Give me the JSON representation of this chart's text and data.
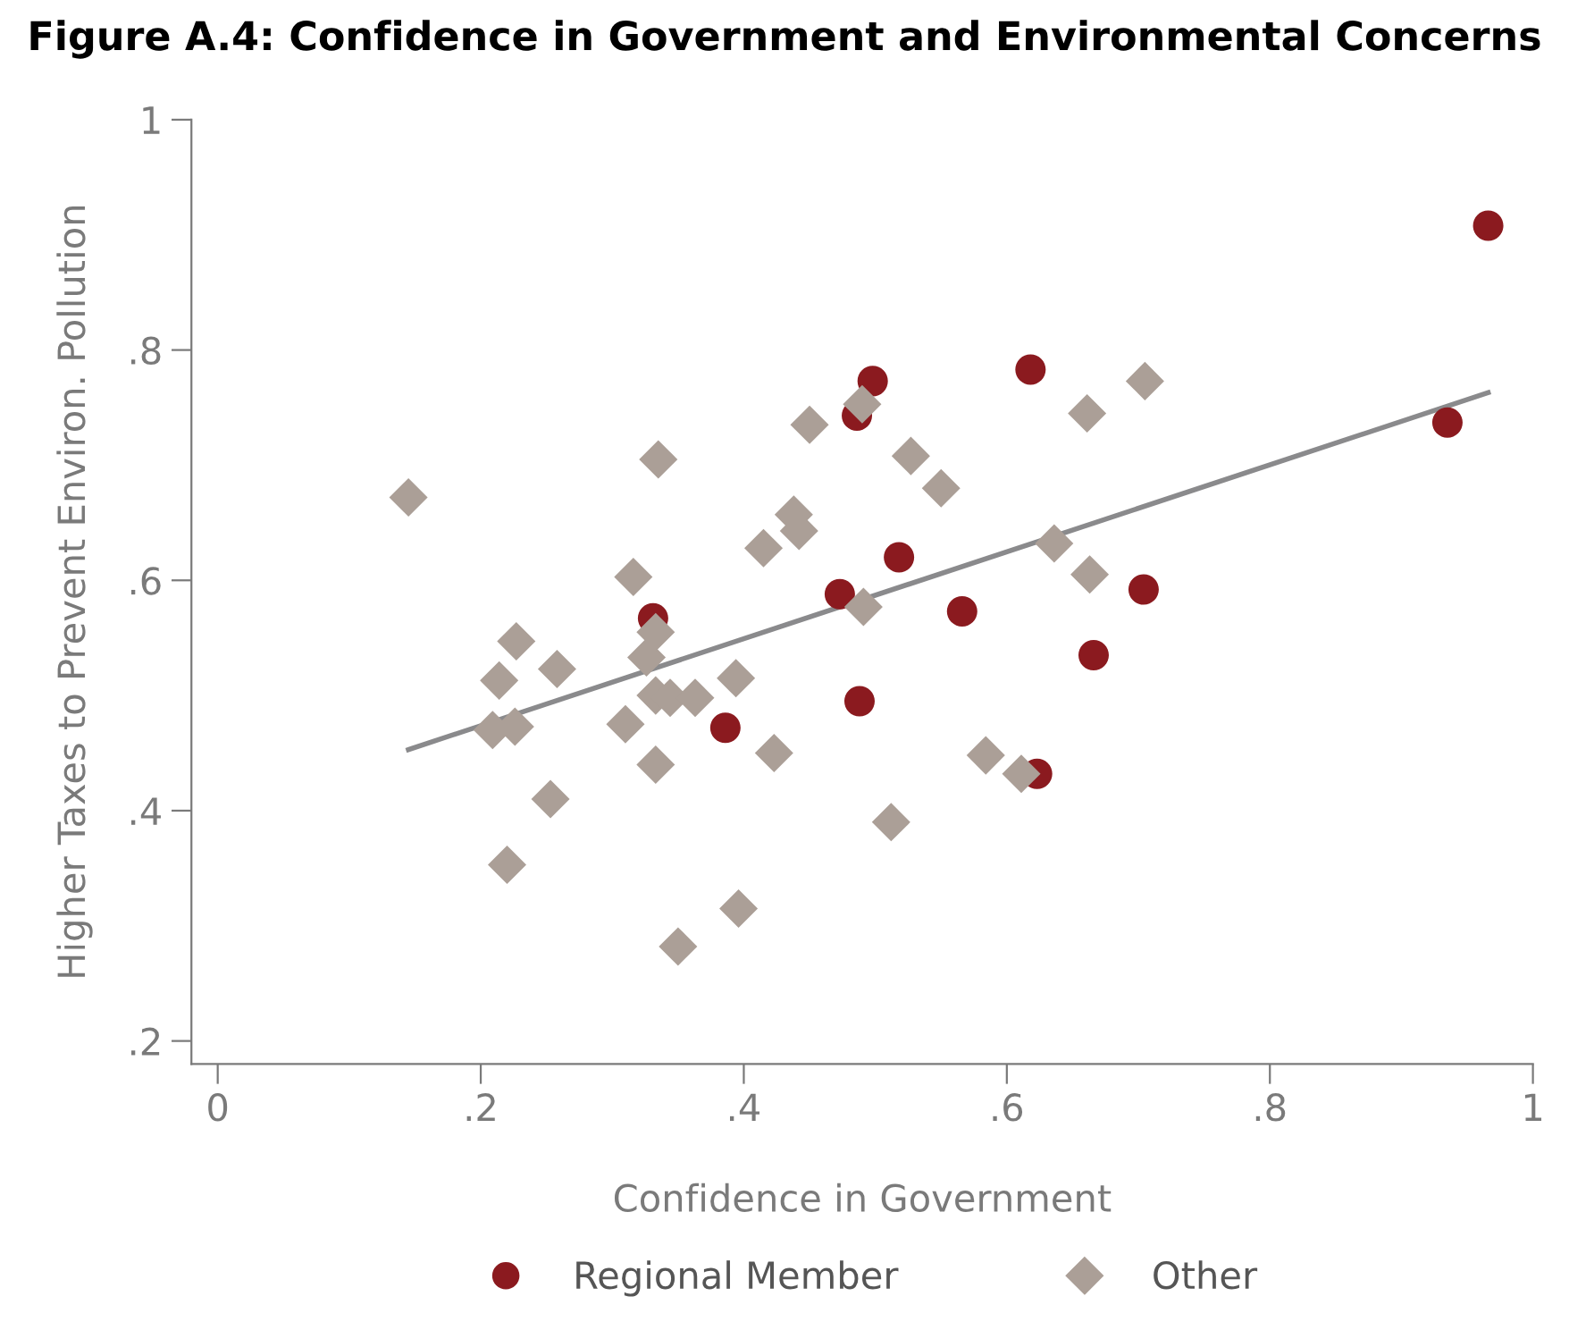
{
  "chart_data": {
    "type": "scatter",
    "title": "Figure A.4: Confidence in Government and Environmental Concerns",
    "xlabel": "Confidence in Government",
    "ylabel": "Higher Taxes to Prevent Environ. Pollution",
    "xlim": [
      -0.02,
      1.0
    ],
    "ylim": [
      0.18,
      1.0
    ],
    "xticks": [
      {
        "value": 0,
        "label": "0"
      },
      {
        "value": 0.2,
        "label": ".2"
      },
      {
        "value": 0.4,
        "label": ".4"
      },
      {
        "value": 0.6,
        "label": ".6"
      },
      {
        "value": 0.8,
        "label": ".8"
      },
      {
        "value": 1,
        "label": "1"
      }
    ],
    "yticks": [
      {
        "value": 0.2,
        "label": ".2"
      },
      {
        "value": 0.4,
        "label": ".4"
      },
      {
        "value": 0.6,
        "label": ".6"
      },
      {
        "value": 0.8,
        "label": ".8"
      },
      {
        "value": 1,
        "label": "1"
      }
    ],
    "grid": false,
    "legend": "bottom",
    "series": [
      {
        "name": "Regional Member",
        "marker": "circle",
        "color": "#8b1a1f",
        "x": [
          0.331,
          0.386,
          0.473,
          0.486,
          0.498,
          0.488,
          0.518,
          0.566,
          0.618,
          0.623,
          0.666,
          0.704,
          0.935,
          0.966
        ],
        "values": [
          0.567,
          0.472,
          0.588,
          0.743,
          0.773,
          0.495,
          0.62,
          0.573,
          0.783,
          0.432,
          0.535,
          0.592,
          0.737,
          0.908
        ]
      },
      {
        "name": "Other",
        "marker": "diamond",
        "color": "#ab9f97",
        "x": [
          0.145,
          0.209,
          0.214,
          0.227,
          0.226,
          0.22,
          0.253,
          0.258,
          0.31,
          0.316,
          0.326,
          0.333,
          0.333,
          0.333,
          0.335,
          0.344,
          0.35,
          0.363,
          0.394,
          0.396,
          0.415,
          0.423,
          0.438,
          0.442,
          0.45,
          0.49,
          0.491,
          0.512,
          0.527,
          0.55,
          0.584,
          0.611,
          0.636,
          0.661,
          0.663,
          0.705
        ],
        "values": [
          0.672,
          0.47,
          0.513,
          0.547,
          0.473,
          0.353,
          0.41,
          0.523,
          0.475,
          0.603,
          0.533,
          0.555,
          0.5,
          0.44,
          0.705,
          0.498,
          0.282,
          0.498,
          0.515,
          0.315,
          0.628,
          0.45,
          0.657,
          0.643,
          0.735,
          0.753,
          0.577,
          0.39,
          0.708,
          0.68,
          0.448,
          0.432,
          0.632,
          0.745,
          0.605,
          0.773
        ]
      },
      {
        "type": "line",
        "color": "#8a8a8c",
        "x": [
          0.145,
          0.966
        ],
        "values": [
          0.453,
          0.763
        ]
      }
    ]
  }
}
